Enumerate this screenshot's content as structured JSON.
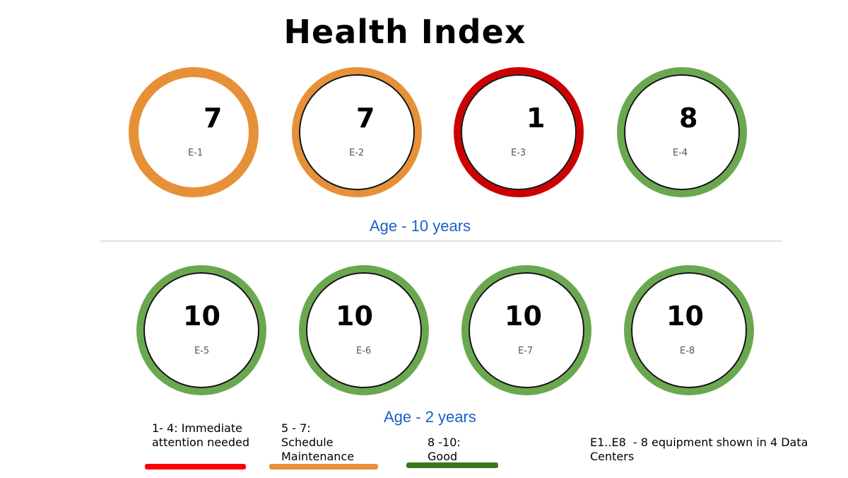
{
  "title": "Health Index",
  "colors": {
    "orange": "#e69138",
    "red": "#cc0000",
    "green": "#6aa84f",
    "legend_red": "#ff0000",
    "legend_orange": "#e69138",
    "legend_green": "#38761d",
    "age_text": "#1a5fc8"
  },
  "row1": {
    "age_label": "Age - 10 years",
    "equipment": [
      {
        "id": "E-1",
        "score": "7",
        "status": "schedule-maintenance"
      },
      {
        "id": "E-2",
        "score": "7",
        "status": "schedule-maintenance"
      },
      {
        "id": "E-3",
        "score": "1",
        "status": "immediate-attention"
      },
      {
        "id": "E-4",
        "score": "8",
        "status": "good"
      }
    ]
  },
  "row2": {
    "age_label": "Age - 2 years",
    "equipment": [
      {
        "id": "E-5",
        "score": "10",
        "status": "good"
      },
      {
        "id": "E-6",
        "score": "10",
        "status": "good"
      },
      {
        "id": "E-7",
        "score": "10",
        "status": "good"
      },
      {
        "id": "E-8",
        "score": "10",
        "status": "good"
      }
    ]
  },
  "legend": {
    "red_label": "1- 4: Immediate\nattention needed",
    "orange_label": "5 - 7:\nSchedule\nMaintenance",
    "green_label": "8 -10:\nGood",
    "note": "E1..E8  - 8 equipment shown in 4 Data\nCenters"
  }
}
